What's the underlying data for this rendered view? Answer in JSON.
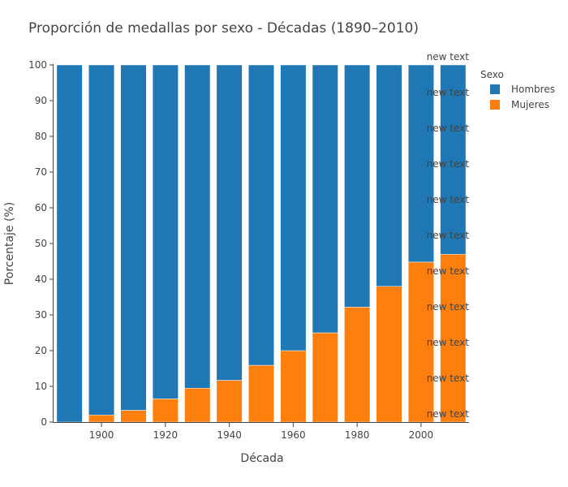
{
  "chart_data": {
    "type": "bar",
    "barmode": "stack",
    "title": "Proporción de medallas por sexo - Décadas (1890–2010)",
    "xlabel": "Década",
    "ylabel": "Porcentaje (%)",
    "categories": [
      1890,
      1900,
      1910,
      1920,
      1930,
      1940,
      1950,
      1960,
      1970,
      1980,
      1990,
      2000,
      2010
    ],
    "x_ticks": [
      1900,
      1920,
      1940,
      1960,
      1980,
      2000
    ],
    "ylim": [
      0,
      100
    ],
    "y_ticks": [
      0,
      10,
      20,
      30,
      40,
      50,
      60,
      70,
      80,
      90,
      100
    ],
    "grid": false,
    "legend_title": "Sexo",
    "legend_position": "top-right",
    "series": [
      {
        "name": "Mujeres",
        "color": "#ff7f0e",
        "values": [
          0,
          2,
          3.3,
          6.5,
          9.5,
          11.7,
          15.9,
          20,
          25,
          32.2,
          38,
          44.8,
          47
        ]
      },
      {
        "name": "Hombres",
        "color": "#1f77b4",
        "values": [
          100,
          98,
          96.7,
          93.5,
          90.5,
          88.3,
          84.1,
          80,
          75,
          67.8,
          62,
          55.2,
          53
        ]
      }
    ],
    "annotations": [
      "new text",
      "new text",
      "new text",
      "new text",
      "new text",
      "new text",
      "new text",
      "new text",
      "new text",
      "new text",
      "new text"
    ]
  }
}
